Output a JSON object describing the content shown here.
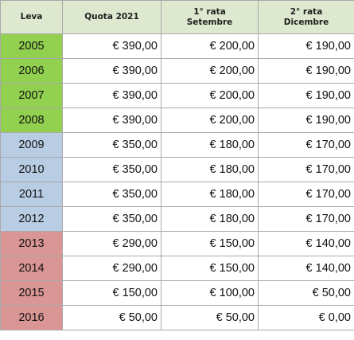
{
  "colors": {
    "header_bg": "#dde8cf",
    "group_green": "#92d050",
    "group_blue": "#b8cce4",
    "group_red": "#da9694",
    "grid": "#a9a9a9"
  },
  "table": {
    "headers": {
      "leva": "Leva",
      "quota": "Quota 2021",
      "rata1_line1": "1° rata",
      "rata1_line2": "Setembre",
      "rata2_line1": "2° rata",
      "rata2_line2": "Dicembre"
    },
    "rows": [
      {
        "leva": "2005",
        "quota": "€ 390,00",
        "rata1": "€ 200,00",
        "rata2": "€ 190,00"
      },
      {
        "leva": "2006",
        "quota": "€ 390,00",
        "rata1": "€ 200,00",
        "rata2": "€ 190,00"
      },
      {
        "leva": "2007",
        "quota": "€ 390,00",
        "rata1": "€ 200,00",
        "rata2": "€ 190,00"
      },
      {
        "leva": "2008",
        "quota": "€ 390,00",
        "rata1": "€ 200,00",
        "rata2": "€ 190,00"
      },
      {
        "leva": "2009",
        "quota": "€ 350,00",
        "rata1": "€ 180,00",
        "rata2": "€ 170,00"
      },
      {
        "leva": "2010",
        "quota": "€ 350,00",
        "rata1": "€ 180,00",
        "rata2": "€ 170,00"
      },
      {
        "leva": "2011",
        "quota": "€ 350,00",
        "rata1": "€ 180,00",
        "rata2": "€ 170,00"
      },
      {
        "leva": "2012",
        "quota": "€ 350,00",
        "rata1": "€ 180,00",
        "rata2": "€ 170,00"
      },
      {
        "leva": "2013",
        "quota": "€ 290,00",
        "rata1": "€ 150,00",
        "rata2": "€ 140,00"
      },
      {
        "leva": "2014",
        "quota": "€ 290,00",
        "rata1": "€ 150,00",
        "rata2": "€ 140,00"
      },
      {
        "leva": "2015",
        "quota": "€ 150,00",
        "rata1": "€ 100,00",
        "rata2": "€ 50,00"
      },
      {
        "leva": "2016",
        "quota": "€ 50,00",
        "rata1": "€ 50,00",
        "rata2": "€ 0,00"
      }
    ]
  }
}
